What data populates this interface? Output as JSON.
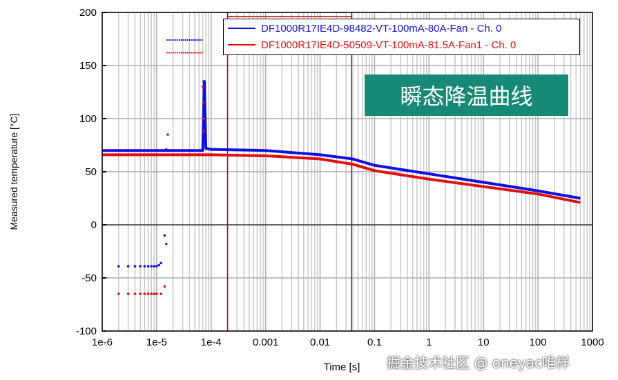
{
  "chart_data": {
    "type": "scatter",
    "xlabel": "Time [s]",
    "ylabel": "Measured temperature [°C]",
    "xscale": "log",
    "xlim": [
      1e-06,
      1000
    ],
    "ylim": [
      -100,
      200
    ],
    "xticks": [
      1e-06,
      1e-05,
      0.0001,
      0.001,
      0.01,
      0.1,
      1,
      10,
      100,
      1000
    ],
    "xtick_labels": [
      "1e-6",
      "1e-5",
      "1e-4",
      "0.001",
      "0.01",
      "0.1",
      "1",
      "10",
      "100",
      "1000"
    ],
    "yticks": [
      -100,
      -50,
      0,
      50,
      100,
      150,
      200
    ],
    "ytick_labels": [
      "-100",
      "-50",
      "0",
      "50",
      "100",
      "150",
      "200"
    ],
    "grid": true,
    "legend_position": "top-right",
    "cursor_lines_x": [
      0.0002,
      0.038
    ],
    "cursor_color": "#c00000",
    "series": [
      {
        "name": "DF1000R17IE4D-98482-VT-100mA-80A-Fan - Ch. 0",
        "color": "#1010e0",
        "x": [
          1e-06,
          7e-05,
          7.5e-05,
          8e-05,
          0.0001,
          0.001,
          0.01,
          0.04,
          0.1,
          1,
          10,
          100,
          600
        ],
        "y": [
          70,
          70,
          135,
          72,
          71,
          70,
          66,
          62,
          56,
          48,
          40,
          32,
          25
        ],
        "dots": [
          [
            2e-06,
            -39
          ],
          [
            3e-06,
            -39
          ],
          [
            4e-06,
            -39
          ],
          [
            5e-06,
            -39
          ],
          [
            6e-06,
            -39
          ],
          [
            7e-06,
            -39
          ],
          [
            8e-06,
            -39
          ],
          [
            9e-06,
            -39
          ],
          [
            1e-05,
            -39
          ],
          [
            1.1e-05,
            -38
          ],
          [
            1.2e-05,
            -36
          ],
          [
            1.4e-05,
            -10
          ],
          [
            1.5e-05,
            71
          ],
          [
            7.3e-05,
            135
          ],
          [
            7.3e-05,
            118
          ],
          [
            7.5e-05,
            100
          ],
          [
            7.7e-05,
            90
          ]
        ],
        "segment": {
          "x": [
            1.5e-05,
            7e-05
          ],
          "y": 174
        }
      },
      {
        "name": "DF1000R17IE4D-50509-VT-100mA-81.5A-Fan1 - Ch. 0",
        "color": "#e01010",
        "x": [
          1e-06,
          0.0001,
          0.001,
          0.01,
          0.04,
          0.1,
          1,
          10,
          100,
          600
        ],
        "y": [
          66,
          66,
          65,
          62,
          57,
          51,
          43,
          36,
          29,
          21
        ],
        "dots": [
          [
            2e-06,
            -65
          ],
          [
            3e-06,
            -65
          ],
          [
            4e-06,
            -65
          ],
          [
            5e-06,
            -65
          ],
          [
            6e-06,
            -65
          ],
          [
            7e-06,
            -65
          ],
          [
            8e-06,
            -65
          ],
          [
            9e-06,
            -65
          ],
          [
            1e-05,
            -65
          ],
          [
            1.2e-05,
            -65
          ],
          [
            1.4e-05,
            -58
          ],
          [
            1.5e-05,
            -18
          ],
          [
            1.6e-05,
            85
          ],
          [
            7e-05,
            130
          ],
          [
            7.2e-05,
            115
          ],
          [
            7.3e-05,
            100
          ],
          [
            7.4e-05,
            88
          ]
        ],
        "segment": {
          "x": [
            1.5e-05,
            7e-05
          ],
          "y": 162
        }
      }
    ]
  },
  "annotation": "瞬态降温曲线",
  "watermark": "掘金技术社区 @ oneyac唯样"
}
